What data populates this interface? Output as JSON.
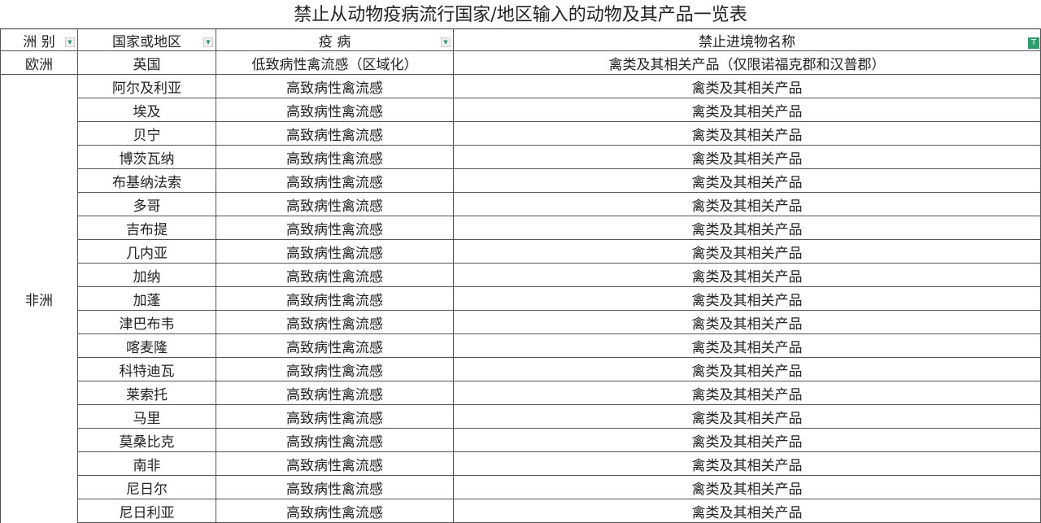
{
  "title": "禁止从动物疫病流行国家/地区输入的动物及其产品一览表",
  "headers": [
    "洲 别",
    "国家或地区",
    "疫 病",
    "禁止进境物名称"
  ],
  "europe": {
    "continent": "欧洲",
    "country": "英国",
    "disease": "低致病性禽流感（区域化）",
    "products": "禽类及其相关产品（仅限诺福克郡和汉普郡）"
  },
  "africa": {
    "continent": "非洲",
    "disease": "高致病性禽流感",
    "products": "禽类及其相关产品",
    "countries": [
      "阿尔及利亚",
      "埃及",
      "贝宁",
      "博茨瓦纳",
      "布基纳法索",
      "多哥",
      "吉布提",
      "几内亚",
      "加纳",
      "加蓬",
      "津巴布韦",
      "喀麦隆",
      "科特迪瓦",
      "莱索托",
      "马里",
      "莫桑比克",
      "南非",
      "尼日尔",
      "尼日利亚"
    ]
  },
  "icons": {
    "dropdown": "dropdown-arrow-icon",
    "filter": "filter-active-icon"
  },
  "colors": {
    "filter_accent": "#2e9e6e"
  }
}
